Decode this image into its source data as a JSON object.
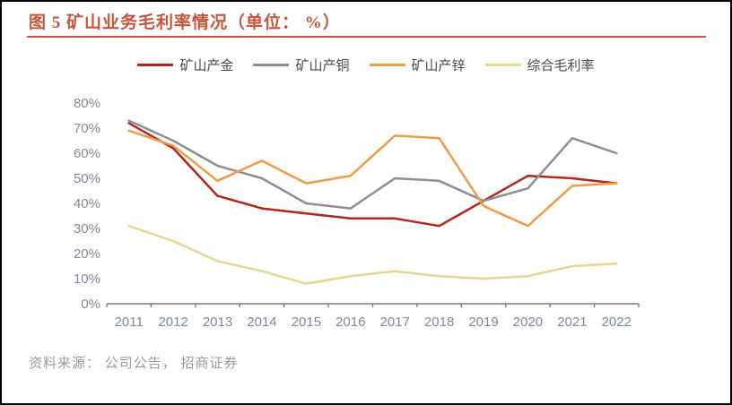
{
  "figure": {
    "title": "图 5 矿山业务毛利率情况（单位： %）",
    "source": "资料来源： 公司公告， 招商证券",
    "accent_color": "#C3563B",
    "axis_text_color": "#808A99",
    "axis_line_color": "#7a7a7a"
  },
  "chart_data": {
    "type": "line",
    "title": "图 5 矿山业务毛利率情况（单位： %）",
    "categories": [
      "2011",
      "2012",
      "2013",
      "2014",
      "2015",
      "2016",
      "2017",
      "2018",
      "2019",
      "2020",
      "2021",
      "2022"
    ],
    "series": [
      {
        "name": "矿山产金",
        "color": "#B2251F",
        "values": [
          72,
          62,
          43,
          38,
          36,
          34,
          34,
          31,
          41,
          51,
          50,
          48
        ]
      },
      {
        "name": "矿山产铜",
        "color": "#8E8E8E",
        "values": [
          73,
          65,
          55,
          50,
          40,
          38,
          50,
          49,
          41,
          46,
          66,
          60
        ]
      },
      {
        "name": "矿山产锌",
        "color": "#EF9C48",
        "values": [
          69,
          63,
          49,
          57,
          48,
          51,
          67,
          66,
          39,
          31,
          47,
          48
        ]
      },
      {
        "name": "综合毛利率",
        "color": "#E5D792",
        "values": [
          31,
          25,
          17,
          13,
          8,
          11,
          13,
          11,
          10,
          11,
          15,
          16
        ]
      }
    ],
    "xlabel": "",
    "ylabel": "",
    "ylim": [
      0,
      80
    ],
    "ytick_step": 10,
    "yticks": [
      "0%",
      "10%",
      "20%",
      "30%",
      "40%",
      "50%",
      "60%",
      "70%",
      "80%"
    ],
    "grid": false,
    "legend_position": "top"
  }
}
